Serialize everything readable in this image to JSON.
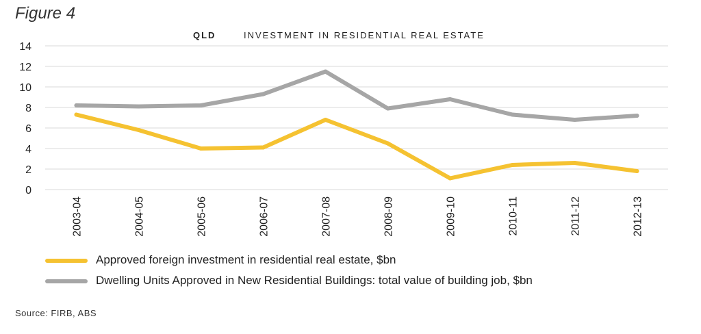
{
  "figure_label": "Figure 4",
  "source": "Source: FIRB, ABS",
  "colors": {
    "series_1": "#f5c231",
    "series_2": "#a6a6a6",
    "grid": "#d9d9d9",
    "axis_text": "#222222"
  },
  "chart_data": {
    "type": "line",
    "title_region": "QLD",
    "title": "INVESTMENT IN RESIDENTIAL REAL ESTATE",
    "xlabel": "",
    "ylabel": "",
    "ylim": [
      0,
      14
    ],
    "yticks": [
      0,
      2,
      4,
      6,
      8,
      10,
      12,
      14
    ],
    "grid": true,
    "legend_position": "bottom",
    "categories": [
      "2003-04",
      "2004-05",
      "2005-06",
      "2006-07",
      "2007-08",
      "2008-09",
      "2009-10",
      "2010-11",
      "2011-12",
      "2012-13"
    ],
    "series": [
      {
        "name": "Approved foreign investment in residential real estate, $bn",
        "color": "#f5c231",
        "values": [
          7.3,
          5.8,
          4.0,
          4.1,
          6.8,
          4.5,
          1.1,
          2.4,
          2.6,
          1.8
        ]
      },
      {
        "name": "Dwelling Units Approved in New Residential Buildings: total value of building job, $bn",
        "color": "#a6a6a6",
        "values": [
          8.2,
          8.1,
          8.2,
          9.3,
          11.5,
          7.9,
          8.8,
          7.3,
          6.8,
          7.2
        ]
      }
    ]
  }
}
